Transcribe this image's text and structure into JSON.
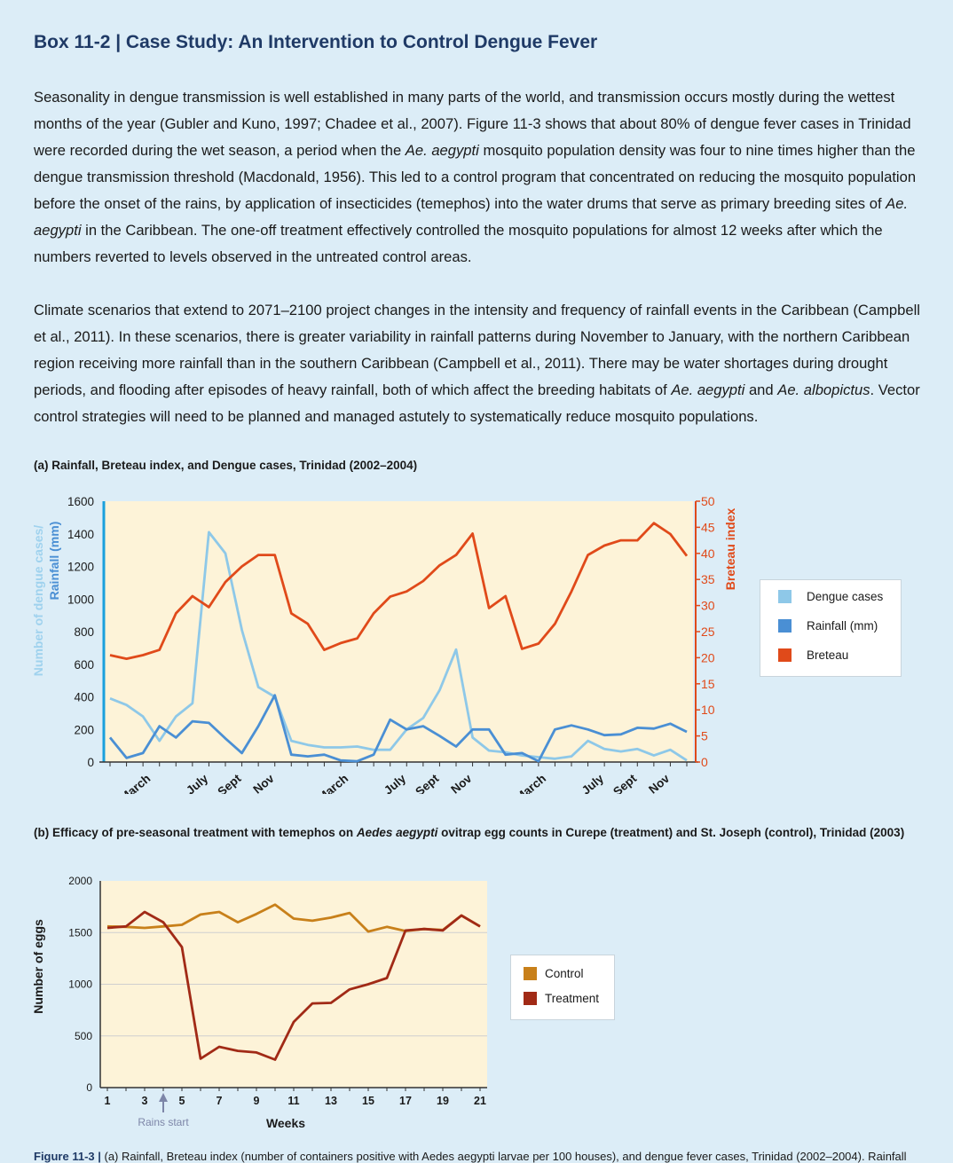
{
  "box": {
    "title": "Box 11-2 | Case Study: An Intervention to Control Dengue Fever",
    "para1": [
      {
        "t": "Seasonality in dengue transmission is well established in many parts of the world, and transmission occurs mostly during the wettest months of the year (Gubler and Kuno, 1997; Chadee et al., 2007). Figure 11-3 shows that about 80% of dengue fever cases in Trinidad were recorded during the wet season, a period when the "
      },
      {
        "t": "Ae. aegypti",
        "i": true
      },
      {
        "t": " mosquito population density was four to nine times higher than the dengue transmission threshold (Macdonald, 1956). This led to a control program that concentrated on reducing the mosquito population before the onset of the rains, by application of insecticides (temephos) into the water drums that serve as primary breeding sites of "
      },
      {
        "t": "Ae. aegypti",
        "i": true
      },
      {
        "t": " in the Caribbean. The one-off treatment effectively controlled the mosquito populations for almost 12 weeks after which the numbers reverted to levels observed in the untreated control areas."
      }
    ],
    "para2": [
      {
        "t": "Climate scenarios that extend to 2071–2100 project changes in the intensity and frequency of rainfall events in the Caribbean (Campbell et al., 2011). In these scenarios, there is greater variability in rainfall patterns during November to January, with the northern Caribbean region receiving more rainfall than in the southern Caribbean (Campbell et al., 2011). There may be water shortages during drought periods, and flooding after episodes of heavy rainfall, both of which affect the breeding habitats of "
      },
      {
        "t": "Ae. aegypti",
        "i": true
      },
      {
        "t": " and "
      },
      {
        "t": "Ae. albopictus",
        "i": true
      },
      {
        "t": ". Vector control strategies will need to be planned and managed astutely to systematically reduce mosquito populations."
      }
    ],
    "caption": {
      "label": "Figure 11-3 |",
      "text": " (a) Rainfall, Breteau index (number of containers positive with Aedes aegypti larvae per 100 houses), and dengue fever cases, Trinidad (2002–2004). Rainfall"
    }
  },
  "chart_data": [
    {
      "type": "line",
      "title": "(a) Rainfall, Breteau index, and Dengue cases, Trinidad (2002–2004)",
      "ylabel_left_1": "Number of dengue cases/",
      "ylabel_left_2": "Rainfall (mm)",
      "ylabel_right": "Breteau index",
      "ylim": [
        0,
        1600
      ],
      "yticks": [
        0,
        200,
        400,
        600,
        800,
        1000,
        1200,
        1400,
        1600
      ],
      "ylim_right": [
        0,
        50
      ],
      "yticks_right": [
        0,
        5,
        10,
        15,
        20,
        25,
        30,
        35,
        40,
        45,
        50
      ],
      "x_tick_labels": [
        {
          "label": "March",
          "x": 3.5
        },
        {
          "label": "July",
          "x": 7
        },
        {
          "label": "Sept",
          "x": 9
        },
        {
          "label": "Nov",
          "x": 11
        },
        {
          "label": "March",
          "x": 15.5
        },
        {
          "label": "July",
          "x": 19
        },
        {
          "label": "Sept",
          "x": 21
        },
        {
          "label": "Nov",
          "x": 23
        },
        {
          "label": "March",
          "x": 27.5
        },
        {
          "label": "July",
          "x": 31
        },
        {
          "label": "Sept",
          "x": 33
        },
        {
          "label": "Nov",
          "x": 35
        }
      ],
      "x_count": 36,
      "series": [
        {
          "name": "Dengue cases",
          "color": "#8ec8e8",
          "axis": "left",
          "values": [
            390,
            350,
            280,
            130,
            280,
            360,
            1410,
            1280,
            810,
            460,
            400,
            130,
            105,
            90,
            90,
            95,
            75,
            75,
            200,
            270,
            440,
            690,
            150,
            70,
            60,
            40,
            30,
            20,
            35,
            130,
            80,
            65,
            80,
            40,
            75,
            10
          ]
        },
        {
          "name": "Rainfall (mm)",
          "color": "#4a8fd4",
          "axis": "left",
          "values": [
            150,
            25,
            55,
            220,
            150,
            250,
            240,
            145,
            55,
            220,
            410,
            45,
            35,
            45,
            10,
            5,
            45,
            260,
            200,
            220,
            160,
            95,
            200,
            200,
            45,
            55,
            5,
            200,
            225,
            200,
            165,
            170,
            210,
            205,
            235,
            185
          ]
        },
        {
          "name": "Breteau",
          "color": "#e04a1a",
          "axis": "right",
          "values": [
            20.5,
            19.8,
            20.5,
            21.5,
            28.5,
            31.8,
            29.7,
            34.5,
            37.5,
            39.7,
            39.7,
            28.5,
            26.5,
            21.5,
            22.8,
            23.7,
            28.5,
            31.7,
            32.7,
            34.7,
            37.7,
            39.7,
            43.8,
            29.5,
            31.8,
            21.7,
            22.7,
            26.5,
            32.7,
            39.7,
            41.5,
            42.5,
            42.5,
            45.8,
            43.7,
            39.5
          ]
        }
      ]
    },
    {
      "type": "line",
      "title_part1": "(b) Efficacy of pre-seasonal treatment with temephos on ",
      "title_italic": "Aedes aegypti",
      "title_part2": " ovitrap egg counts in Curepe (treatment) and St. Joseph (control), Trinidad (2003)",
      "xlabel": "Weeks",
      "ylabel": "Number of eggs",
      "xlim": [
        1,
        22
      ],
      "ylim": [
        0,
        2000
      ],
      "yticks": [
        0,
        500,
        1000,
        1500,
        2000
      ],
      "xticks": [
        1,
        3,
        5,
        7,
        9,
        11,
        13,
        15,
        17,
        19,
        21
      ],
      "annotation": {
        "text": "Rains start",
        "x": 4
      },
      "x": [
        1,
        2,
        3,
        4,
        5,
        6,
        7,
        8,
        9,
        10,
        11,
        12,
        13,
        14,
        15,
        16,
        17,
        18,
        19,
        20,
        21
      ],
      "series": [
        {
          "name": "Control",
          "color": "#c8801a",
          "values": [
            1560,
            1555,
            1545,
            1560,
            1575,
            1675,
            1700,
            1600,
            1680,
            1770,
            1635,
            1615,
            1645,
            1690,
            1510,
            1555,
            1515,
            1535,
            1525,
            1665,
            1560
          ]
        },
        {
          "name": "Treatment",
          "color": "#a12a16",
          "values": [
            1545,
            1560,
            1700,
            1600,
            1360,
            280,
            395,
            355,
            340,
            270,
            635,
            815,
            820,
            950,
            1000,
            1060,
            1520,
            1535,
            1520,
            1665,
            1560
          ]
        }
      ]
    }
  ]
}
